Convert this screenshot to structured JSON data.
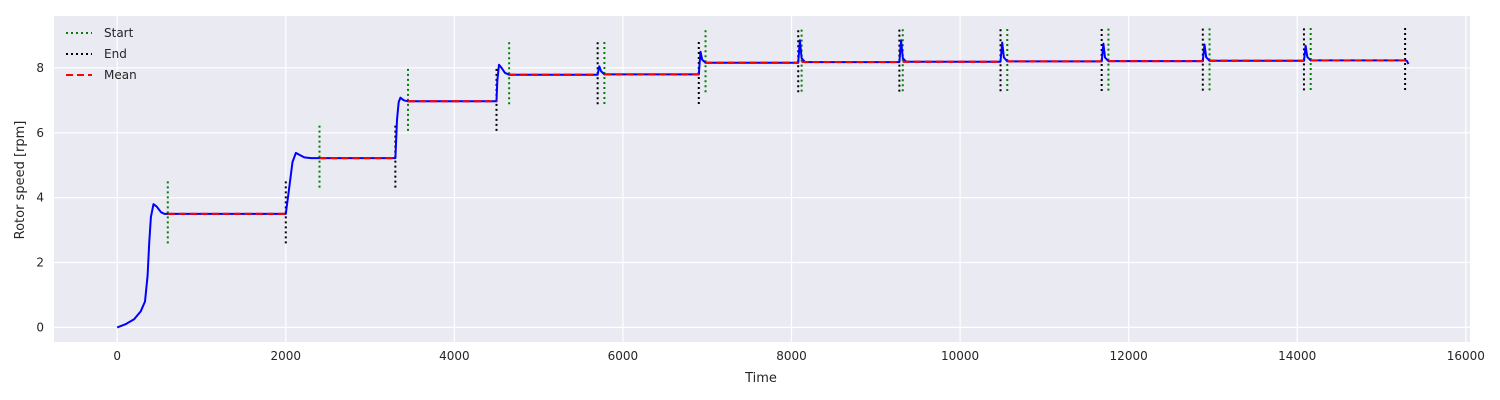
{
  "chart_data": {
    "type": "line",
    "xlabel": "Time",
    "ylabel": "Rotor speed [rpm]",
    "xlim": [
      -750,
      16050
    ],
    "ylim": [
      -0.45,
      9.6
    ],
    "xticks": [
      0,
      2000,
      4000,
      6000,
      8000,
      10000,
      12000,
      14000,
      16000
    ],
    "yticks": [
      0,
      2,
      4,
      6,
      8
    ],
    "grid": true,
    "legend_position": "top-left",
    "legend": [
      {
        "key": "start",
        "label": "Start",
        "color": "#008000",
        "dash": "dotted"
      },
      {
        "key": "end",
        "label": "End",
        "color": "#000000",
        "dash": "dotted"
      },
      {
        "key": "mean",
        "label": "Mean",
        "color": "#ff0000",
        "dash": "dashed"
      }
    ],
    "series_color": "#0000ff",
    "steps": [
      {
        "start": 600,
        "end": 2000,
        "mean": 3.5
      },
      {
        "start": 2400,
        "end": 3300,
        "mean": 5.22
      },
      {
        "start": 3450,
        "end": 4500,
        "mean": 6.97
      },
      {
        "start": 4650,
        "end": 5700,
        "mean": 7.79
      },
      {
        "start": 5780,
        "end": 6900,
        "mean": 7.8
      },
      {
        "start": 6980,
        "end": 8080,
        "mean": 8.16
      },
      {
        "start": 8120,
        "end": 9280,
        "mean": 8.18
      },
      {
        "start": 9320,
        "end": 10480,
        "mean": 8.19
      },
      {
        "start": 10560,
        "end": 11680,
        "mean": 8.2
      },
      {
        "start": 11760,
        "end": 12880,
        "mean": 8.21
      },
      {
        "start": 12960,
        "end": 14080,
        "mean": 8.22
      },
      {
        "start": 14160,
        "end": 15280,
        "mean": 8.23
      }
    ],
    "rotor_speed": {
      "x": [
        0,
        100,
        200,
        280,
        330,
        360,
        380,
        400,
        430,
        470,
        520,
        560,
        600,
        2000,
        2040,
        2080,
        2120,
        2160,
        2220,
        2300,
        2400,
        3300,
        3320,
        3340,
        3360,
        3400,
        3450,
        4500,
        4510,
        4530,
        4560,
        4600,
        4650,
        5700,
        5720,
        5740,
        5780,
        6900,
        6920,
        6940,
        6980,
        8080,
        8100,
        8120,
        8160,
        9280,
        9300,
        9320,
        9360,
        10480,
        10500,
        10520,
        10560,
        11680,
        11700,
        11720,
        11760,
        12880,
        12900,
        12920,
        12960,
        14080,
        14100,
        14120,
        14160,
        15280,
        15300,
        15320
      ],
      "y": [
        0,
        0.1,
        0.25,
        0.5,
        0.8,
        1.6,
        2.6,
        3.4,
        3.8,
        3.72,
        3.55,
        3.5,
        3.5,
        3.5,
        4.3,
        5.1,
        5.38,
        5.32,
        5.24,
        5.22,
        5.22,
        5.22,
        6.4,
        6.95,
        7.08,
        7.0,
        6.97,
        6.97,
        7.6,
        8.1,
        8.0,
        7.85,
        7.79,
        7.79,
        8.05,
        7.9,
        7.8,
        7.8,
        8.5,
        8.25,
        8.16,
        8.16,
        8.85,
        8.3,
        8.18,
        8.18,
        8.85,
        8.3,
        8.19,
        8.19,
        8.78,
        8.32,
        8.2,
        8.2,
        8.75,
        8.32,
        8.21,
        8.21,
        8.72,
        8.33,
        8.22,
        8.22,
        8.68,
        8.34,
        8.23,
        8.23,
        8.22,
        8.12
      ]
    }
  }
}
